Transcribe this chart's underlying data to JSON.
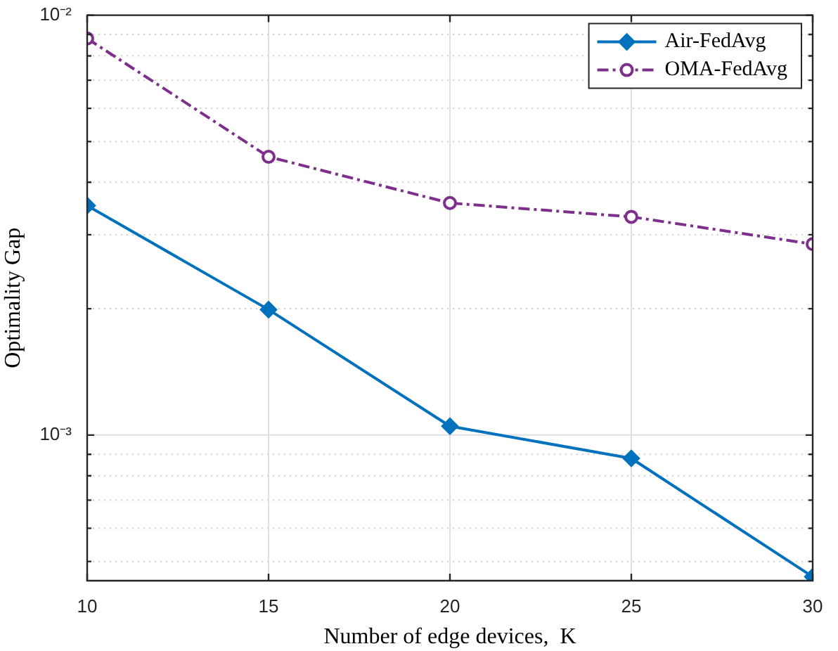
{
  "chart_data": {
    "type": "line",
    "xlabel": "Number of edge devices,  K",
    "ylabel": "Optimality Gap",
    "x": [
      10,
      15,
      20,
      25,
      30
    ],
    "series": [
      {
        "name": "Air-FedAvg",
        "color": "#0072bd",
        "marker": "diamond",
        "line_style": "solid",
        "values": [
          0.00352,
          0.00199,
          0.00105,
          0.00088,
          0.00046
        ]
      },
      {
        "name": "OMA-FedAvg",
        "color": "#7e2f8e",
        "marker": "circle",
        "line_style": "dashed",
        "values": [
          0.0088,
          0.0046,
          0.00357,
          0.00331,
          0.00285
        ]
      }
    ],
    "log": "y",
    "xlim": [
      10,
      30
    ],
    "xticks": [
      10,
      15,
      20,
      25,
      30
    ],
    "ylim": [
      0.00045,
      0.01
    ],
    "yticks": [
      {
        "value": 0.0005,
        "label": null
      },
      {
        "value": 0.0006,
        "label": null
      },
      {
        "value": 0.0007,
        "label": null
      },
      {
        "value": 0.0008,
        "label": null
      },
      {
        "value": 0.0009,
        "label": null
      },
      {
        "value": 0.001,
        "label": "10⁻³"
      },
      {
        "value": 0.002,
        "label": null
      },
      {
        "value": 0.003,
        "label": null
      },
      {
        "value": 0.004,
        "label": null
      },
      {
        "value": 0.005,
        "label": null
      },
      {
        "value": 0.006,
        "label": null
      },
      {
        "value": 0.007,
        "label": null
      },
      {
        "value": 0.008,
        "label": null
      },
      {
        "value": 0.009,
        "label": null
      },
      {
        "value": 0.01,
        "label": "10⁻²"
      }
    ],
    "grid": true,
    "legend": "top right"
  }
}
